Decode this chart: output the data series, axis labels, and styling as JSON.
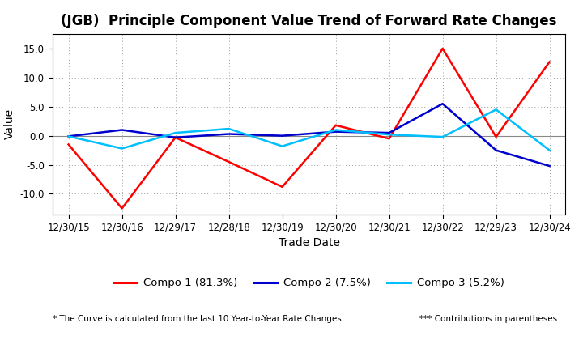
{
  "title": "(JGB)  Principle Component Value Trend of Forward Rate Changes",
  "xlabel": "Trade Date",
  "ylabel": "Value",
  "footnote_left": "* The Curve is calculated from the last 10 Year-to-Year Rate Changes.",
  "footnote_right": "*** Contributions in parentheses.",
  "x_labels": [
    "12/30/15",
    "12/30/16",
    "12/29/17",
    "12/28/18",
    "12/30/19",
    "12/30/20",
    "12/30/21",
    "12/30/22",
    "12/29/23",
    "12/30/24"
  ],
  "series": [
    {
      "label": "Compo 1 (81.3%)",
      "color": "#FF0000",
      "linewidth": 1.8,
      "values": [
        -1.5,
        -12.5,
        -0.3,
        -4.5,
        -8.8,
        1.8,
        -0.5,
        15.0,
        -0.2,
        12.7
      ]
    },
    {
      "label": "Compo 2 (7.5%)",
      "color": "#0000CC",
      "linewidth": 1.8,
      "values": [
        -0.1,
        1.0,
        -0.3,
        0.3,
        0.0,
        0.7,
        0.5,
        5.5,
        -2.5,
        -5.2
      ]
    },
    {
      "label": "Compo 3 (5.2%)",
      "color": "#00BFFF",
      "linewidth": 1.8,
      "values": [
        -0.1,
        -2.2,
        0.5,
        1.2,
        -1.8,
        1.0,
        0.2,
        -0.2,
        4.5,
        -2.5
      ]
    }
  ],
  "ylim": [
    -13.5,
    17.5
  ],
  "yticks": [
    -10.0,
    -5.0,
    0.0,
    5.0,
    10.0,
    15.0
  ],
  "grid_color": "#999999",
  "background_color": "#FFFFFF",
  "title_fontsize": 12,
  "axis_label_fontsize": 10,
  "tick_fontsize": 8.5,
  "legend_fontsize": 9.5,
  "footnote_fontsize": 7.5
}
